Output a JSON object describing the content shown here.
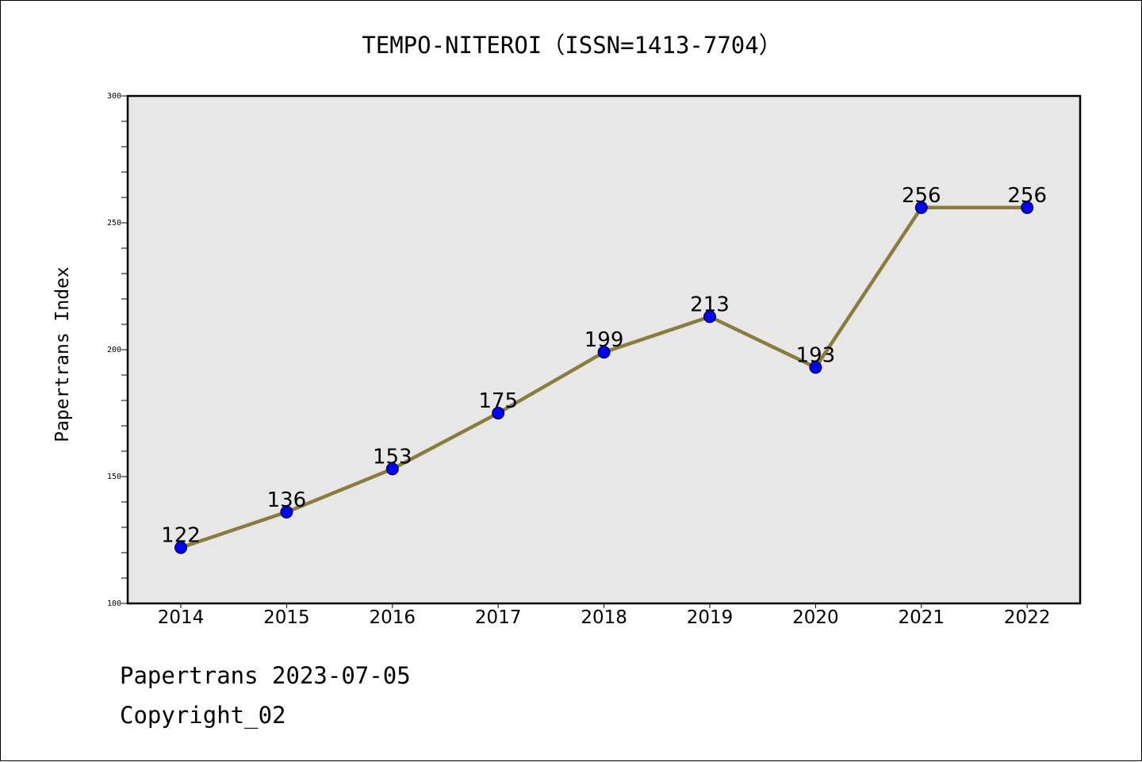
{
  "chart_data": {
    "type": "line",
    "title": "TEMPO-NITEROI（ISSN=1413-7704）",
    "xlabel": "",
    "ylabel": "Papertrans Index",
    "categories": [
      "2014",
      "2015",
      "2016",
      "2017",
      "2018",
      "2019",
      "2020",
      "2021",
      "2022"
    ],
    "series": [
      {
        "values": [
          122,
          136,
          153,
          175,
          199,
          213,
          193,
          256,
          256
        ]
      }
    ],
    "data_labels": [
      "122",
      "136",
      "153",
      "175",
      "199",
      "213",
      "193",
      "256",
      "256"
    ],
    "ylim": [
      100,
      300
    ],
    "y_ticks": [
      "100",
      "150",
      "200",
      "250",
      "300"
    ],
    "grid": false,
    "legend": "none",
    "colors": {
      "line": "#8c7c3c",
      "marker": "#0000ff",
      "plot_background": "#e7e7e7"
    }
  },
  "footer": {
    "line1": "Papertrans 2023-07-05",
    "line2": "Copyright_02"
  }
}
